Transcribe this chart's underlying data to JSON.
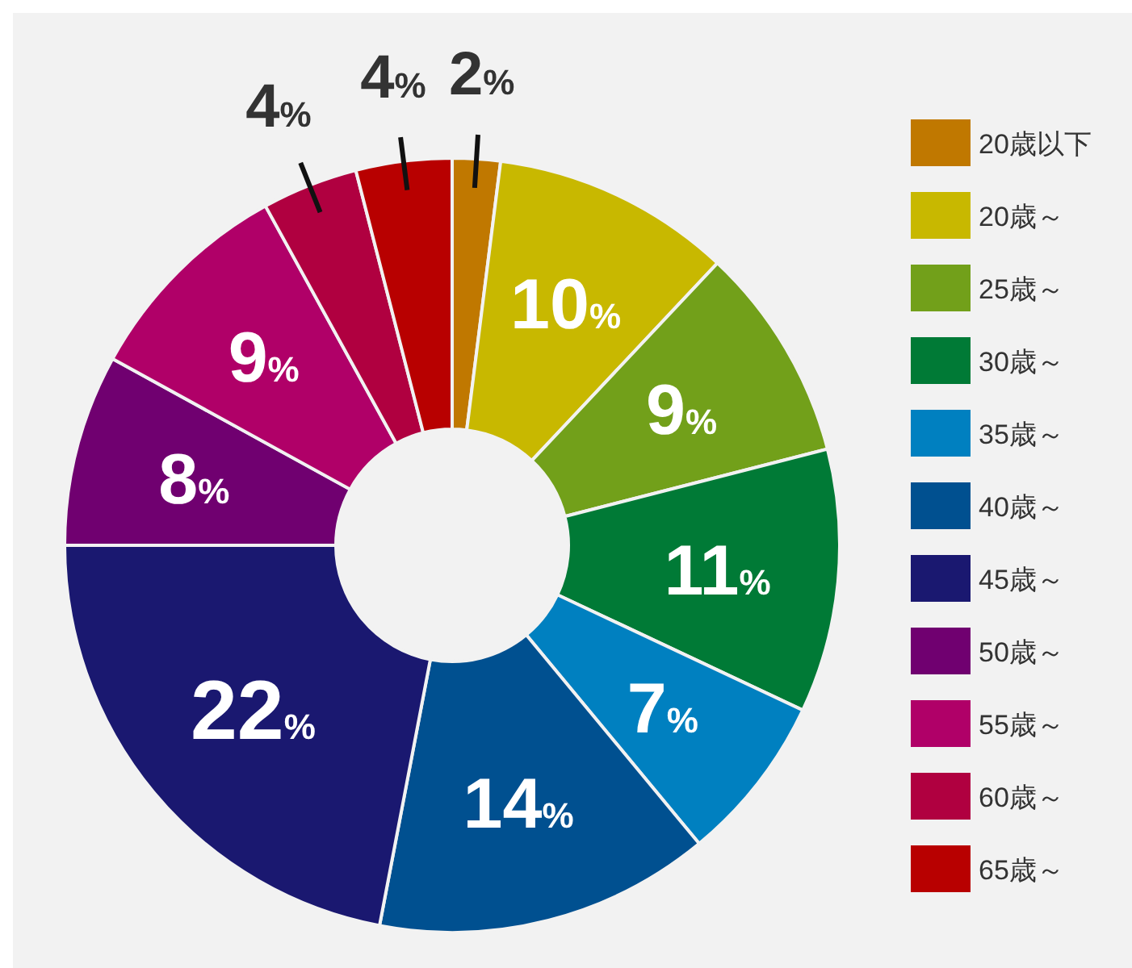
{
  "chart_data": {
    "type": "donut",
    "categories": [
      "20歳以下",
      "20歳～",
      "25歳～",
      "30歳～",
      "35歳～",
      "40歳～",
      "45歳～",
      "50歳～",
      "55歳～",
      "60歳～",
      "65歳～"
    ],
    "values": [
      2,
      10,
      9,
      11,
      7,
      14,
      22,
      8,
      9,
      4,
      4
    ],
    "value_labels": [
      "2%",
      "10%",
      "9%",
      "11%",
      "7%",
      "14%",
      "22%",
      "8%",
      "9%",
      "4%",
      "4%"
    ],
    "colors": [
      "#c07800",
      "#c8b800",
      "#72a01a",
      "#007a36",
      "#0080c0",
      "#005090",
      "#1a1870",
      "#700070",
      "#b00068",
      "#b00040",
      "#b80000"
    ],
    "legend": "right"
  }
}
